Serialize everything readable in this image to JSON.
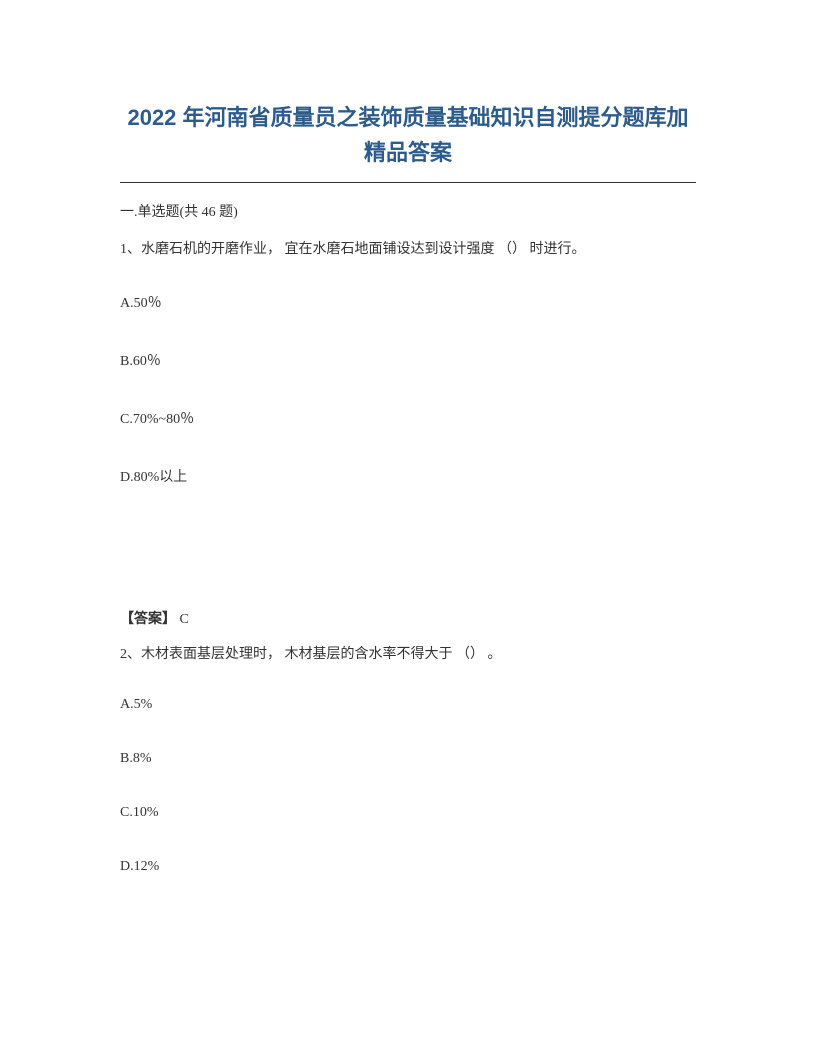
{
  "title": "2022 年河南省质量员之装饰质量基础知识自测提分题库加精品答案",
  "section_header": "一.单选题(共 46 题)",
  "q1": {
    "text": "1、水磨石机的开磨作业， 宜在水磨石地面铺设达到设计强度 （） 时进行。",
    "A": "A.50％",
    "B": "B.60％",
    "C": "C.70%~80％",
    "D": "D.80%以上",
    "answer_label": "【答案】",
    "answer_value": " C"
  },
  "q2": {
    "text": "2、木材表面基层处理时， 木材基层的含水率不得大于 （） 。",
    "A": "A.5%",
    "B": "B.8%",
    "C": "C.10%",
    "D": "D.12%"
  },
  "colors": {
    "title_color": "#2e5c8a",
    "text_color": "#333333",
    "background": "#ffffff",
    "divider": "#333333"
  },
  "typography": {
    "title_fontsize": 22,
    "body_fontsize": 14
  }
}
